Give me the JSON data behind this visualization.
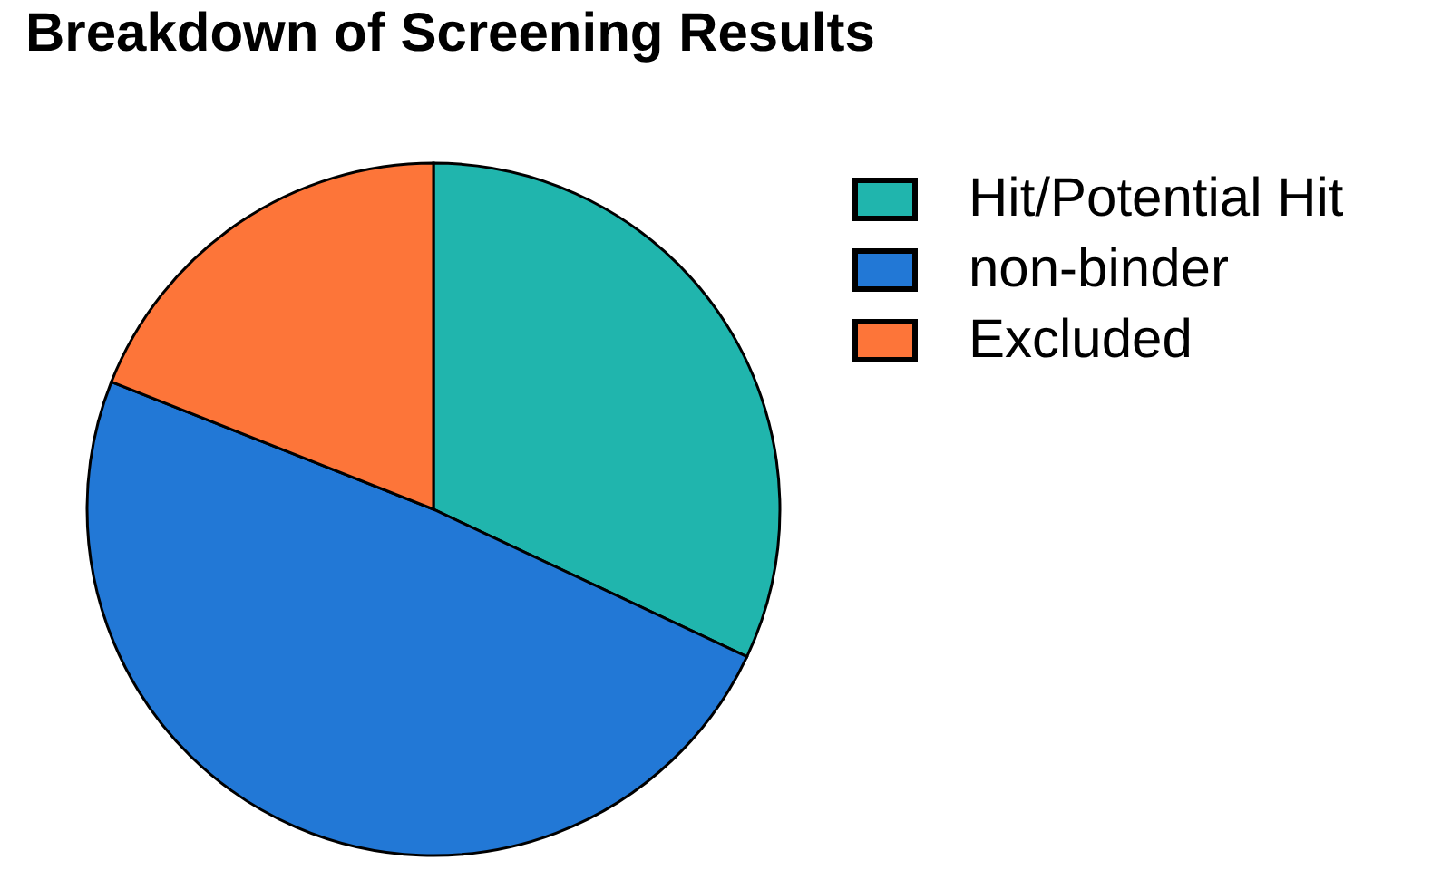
{
  "chart_data": {
    "type": "pie",
    "title": "Breakdown of Screening Results",
    "categories": [
      "Hit/Potential Hit",
      "non-binder",
      "Excluded"
    ],
    "values": [
      32,
      49,
      19
    ],
    "colors": [
      "#20b5ad",
      "#2278d6",
      "#fd7539"
    ],
    "legend": "top right"
  }
}
